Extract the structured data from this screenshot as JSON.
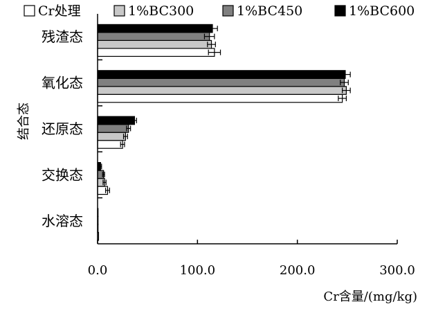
{
  "chart_data": {
    "type": "bar",
    "orientation": "horizontal",
    "title": "",
    "xlabel": "Cr含量/(mg/kg)",
    "ylabel": "结合态",
    "categories": [
      "残渣态",
      "氧化态",
      "还原态",
      "交换态",
      "水溶态"
    ],
    "series": [
      {
        "name": "Cr处理",
        "color": "#ffffff",
        "values": [
          117,
          245,
          25,
          10,
          1
        ],
        "errors": [
          6,
          4,
          2,
          2,
          0.5
        ]
      },
      {
        "name": "1%BC300",
        "color": "#c8c8c8",
        "values": [
          114,
          249,
          28,
          7,
          0.5
        ],
        "errors": [
          4,
          4,
          2,
          1.5,
          0.3
        ]
      },
      {
        "name": "1%BC450",
        "color": "#808080",
        "values": [
          112,
          247,
          31,
          6,
          0.5
        ],
        "errors": [
          5,
          4,
          2,
          1,
          0.3
        ]
      },
      {
        "name": "1%BC600",
        "color": "#000000",
        "values": [
          115,
          248,
          37,
          3,
          0.5
        ],
        "errors": [
          5,
          5,
          2,
          1,
          0.3
        ]
      }
    ],
    "xticks": [
      "0.0",
      "100.0",
      "200.0",
      "300.0"
    ],
    "xlim": [
      0,
      300
    ],
    "grid": false,
    "legend": "top"
  }
}
